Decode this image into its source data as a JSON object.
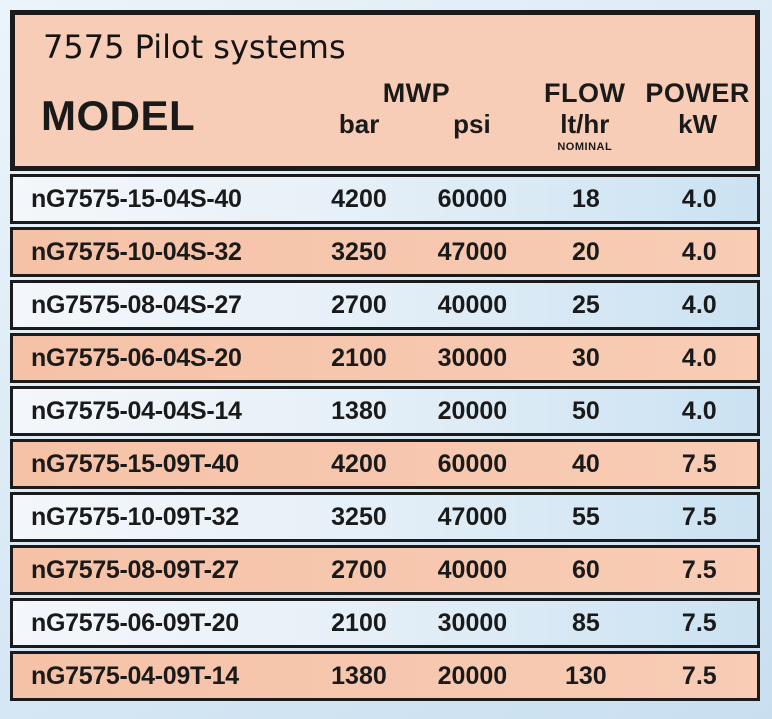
{
  "title": "7575 Pilot systems",
  "header": {
    "model": "MODEL",
    "mwp": "MWP",
    "bar": "bar",
    "psi": "psi",
    "flow": "FLOW",
    "flow_unit": "lt/hr",
    "flow_note": "NOMINAL",
    "power": "POWER",
    "power_unit": "kW"
  },
  "rows": [
    {
      "model": "nG7575-15-04S-40",
      "bar": "4200",
      "psi": "60000",
      "flow": "18",
      "power": "4.0"
    },
    {
      "model": "nG7575-10-04S-32",
      "bar": "3250",
      "psi": "47000",
      "flow": "20",
      "power": "4.0"
    },
    {
      "model": "nG7575-08-04S-27",
      "bar": "2700",
      "psi": "40000",
      "flow": "25",
      "power": "4.0"
    },
    {
      "model": "nG7575-06-04S-20",
      "bar": "2100",
      "psi": "30000",
      "flow": "30",
      "power": "4.0"
    },
    {
      "model": "nG7575-04-04S-14",
      "bar": "1380",
      "psi": "20000",
      "flow": "50",
      "power": "4.0"
    },
    {
      "model": "nG7575-15-09T-40",
      "bar": "4200",
      "psi": "60000",
      "flow": "40",
      "power": "7.5"
    },
    {
      "model": "nG7575-10-09T-32",
      "bar": "3250",
      "psi": "47000",
      "flow": "55",
      "power": "7.5"
    },
    {
      "model": "nG7575-08-09T-27",
      "bar": "2700",
      "psi": "40000",
      "flow": "60",
      "power": "7.5"
    },
    {
      "model": "nG7575-06-09T-20",
      "bar": "2100",
      "psi": "30000",
      "flow": "85",
      "power": "7.5"
    },
    {
      "model": "nG7575-04-09T-14",
      "bar": "1380",
      "psi": "20000",
      "flow": "130",
      "power": "7.5"
    }
  ],
  "colors": {
    "header_salmon": "#f8cdb7",
    "row_salmon": "#f5c2a7",
    "row_blue": "#cbe2f2",
    "page_blue": "#d5e6f4",
    "border_black": "#1b1b1b"
  }
}
